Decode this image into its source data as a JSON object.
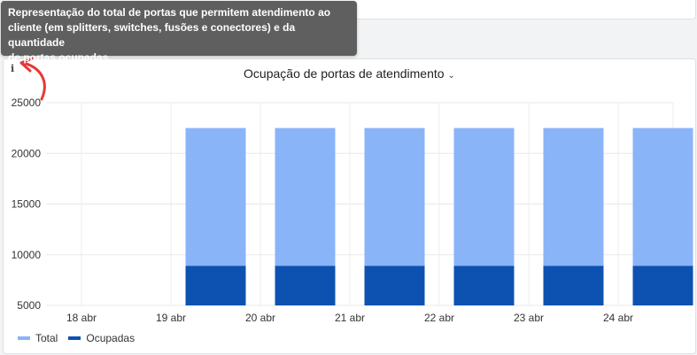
{
  "tooltip": {
    "text": "Representação do total de portas que permitem atendimento ao\ncliente (em splitters, switches, fusões e conectores) e da quantidade\nde portas ocupadas."
  },
  "card": {
    "info_icon": "info-icon",
    "title": "Ocupação de portas de atendimento",
    "title_chevron": "⌄"
  },
  "colors": {
    "total": "#8ab4f8",
    "ocupadas": "#0d52b0",
    "annotation_arrow": "#e53935"
  },
  "chart_data": {
    "type": "bar",
    "stacked": true,
    "categories": [
      "18 abr",
      "19 abr",
      "20 abr",
      "21 abr",
      "22 abr",
      "23 abr",
      "24 abr"
    ],
    "series": [
      {
        "name": "Total",
        "values": [
          null,
          22500,
          22500,
          22500,
          22500,
          22500,
          22500
        ]
      },
      {
        "name": "Ocupadas",
        "values": [
          null,
          8900,
          8900,
          8900,
          8900,
          8900,
          8900
        ]
      }
    ],
    "ylim": [
      5000,
      25000
    ],
    "yticks": [
      "25000",
      "20000",
      "15000",
      "10000",
      "5000"
    ],
    "grid": true,
    "legend_position": "bottom-left"
  }
}
